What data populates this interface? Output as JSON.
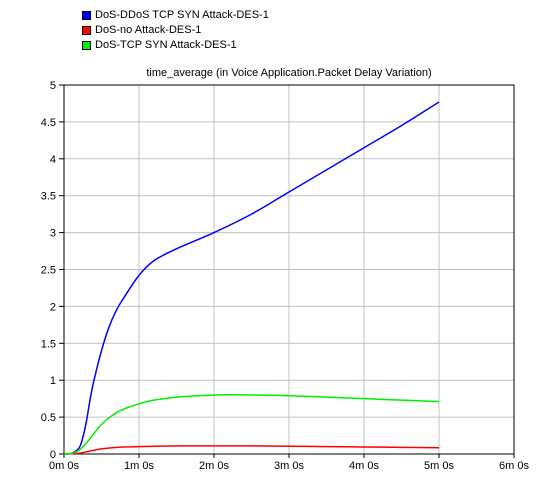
{
  "chart_data": {
    "type": "line",
    "title": "time_average (in Voice Application.Packet Delay Variation)",
    "xlabel": "",
    "ylabel": "",
    "xlim": [
      0,
      6
    ],
    "ylim": [
      0,
      5
    ],
    "x_ticks": [
      0,
      1,
      2,
      3,
      4,
      5,
      6
    ],
    "x_tick_labels": [
      "0m 0s",
      "1m 0s",
      "2m 0s",
      "3m 0s",
      "4m 0s",
      "5m 0s",
      "6m 0s"
    ],
    "y_ticks": [
      0,
      0.5,
      1,
      1.5,
      2,
      2.5,
      3,
      3.5,
      4,
      4.5,
      5
    ],
    "y_tick_labels": [
      "0",
      "0.5",
      "1",
      "1.5",
      "2",
      "2.5",
      "3",
      "3.5",
      "4",
      "4.5",
      "5"
    ],
    "grid": true,
    "legend_position": "top-left, above chart",
    "series": [
      {
        "name": "DoS-DDoS TCP SYN Attack-DES-1",
        "color": "#0000ff",
        "x": [
          0,
          0.1,
          0.2,
          0.25,
          0.3,
          0.35,
          0.4,
          0.5,
          0.6,
          0.7,
          0.8,
          1.0,
          1.2,
          1.5,
          2.0,
          2.5,
          3.0,
          3.5,
          4.0,
          4.5,
          5.0
        ],
        "y": [
          0,
          0.01,
          0.08,
          0.22,
          0.45,
          0.75,
          1.0,
          1.4,
          1.72,
          1.95,
          2.12,
          2.42,
          2.62,
          2.78,
          3.0,
          3.25,
          3.55,
          3.85,
          4.15,
          4.45,
          4.77
        ]
      },
      {
        "name": "DoS-no Attack-DES-1",
        "color": "#ff0000",
        "x": [
          0,
          0.1,
          0.2,
          0.3,
          0.4,
          0.5,
          0.7,
          1.0,
          1.5,
          2.0,
          2.5,
          3.0,
          3.5,
          4.0,
          4.5,
          5.0
        ],
        "y": [
          0,
          0.005,
          0.01,
          0.03,
          0.05,
          0.07,
          0.09,
          0.1,
          0.11,
          0.11,
          0.11,
          0.105,
          0.1,
          0.095,
          0.09,
          0.085
        ]
      },
      {
        "name": "DoS-TCP SYN Attack-DES-1",
        "color": "#00ee00",
        "x": [
          0,
          0.1,
          0.2,
          0.3,
          0.4,
          0.5,
          0.6,
          0.7,
          0.8,
          1.0,
          1.2,
          1.5,
          2.0,
          2.5,
          3.0,
          3.5,
          4.0,
          4.5,
          5.0
        ],
        "y": [
          0,
          0.01,
          0.05,
          0.15,
          0.28,
          0.4,
          0.49,
          0.56,
          0.61,
          0.68,
          0.73,
          0.77,
          0.8,
          0.8,
          0.79,
          0.77,
          0.75,
          0.73,
          0.71
        ]
      }
    ]
  }
}
